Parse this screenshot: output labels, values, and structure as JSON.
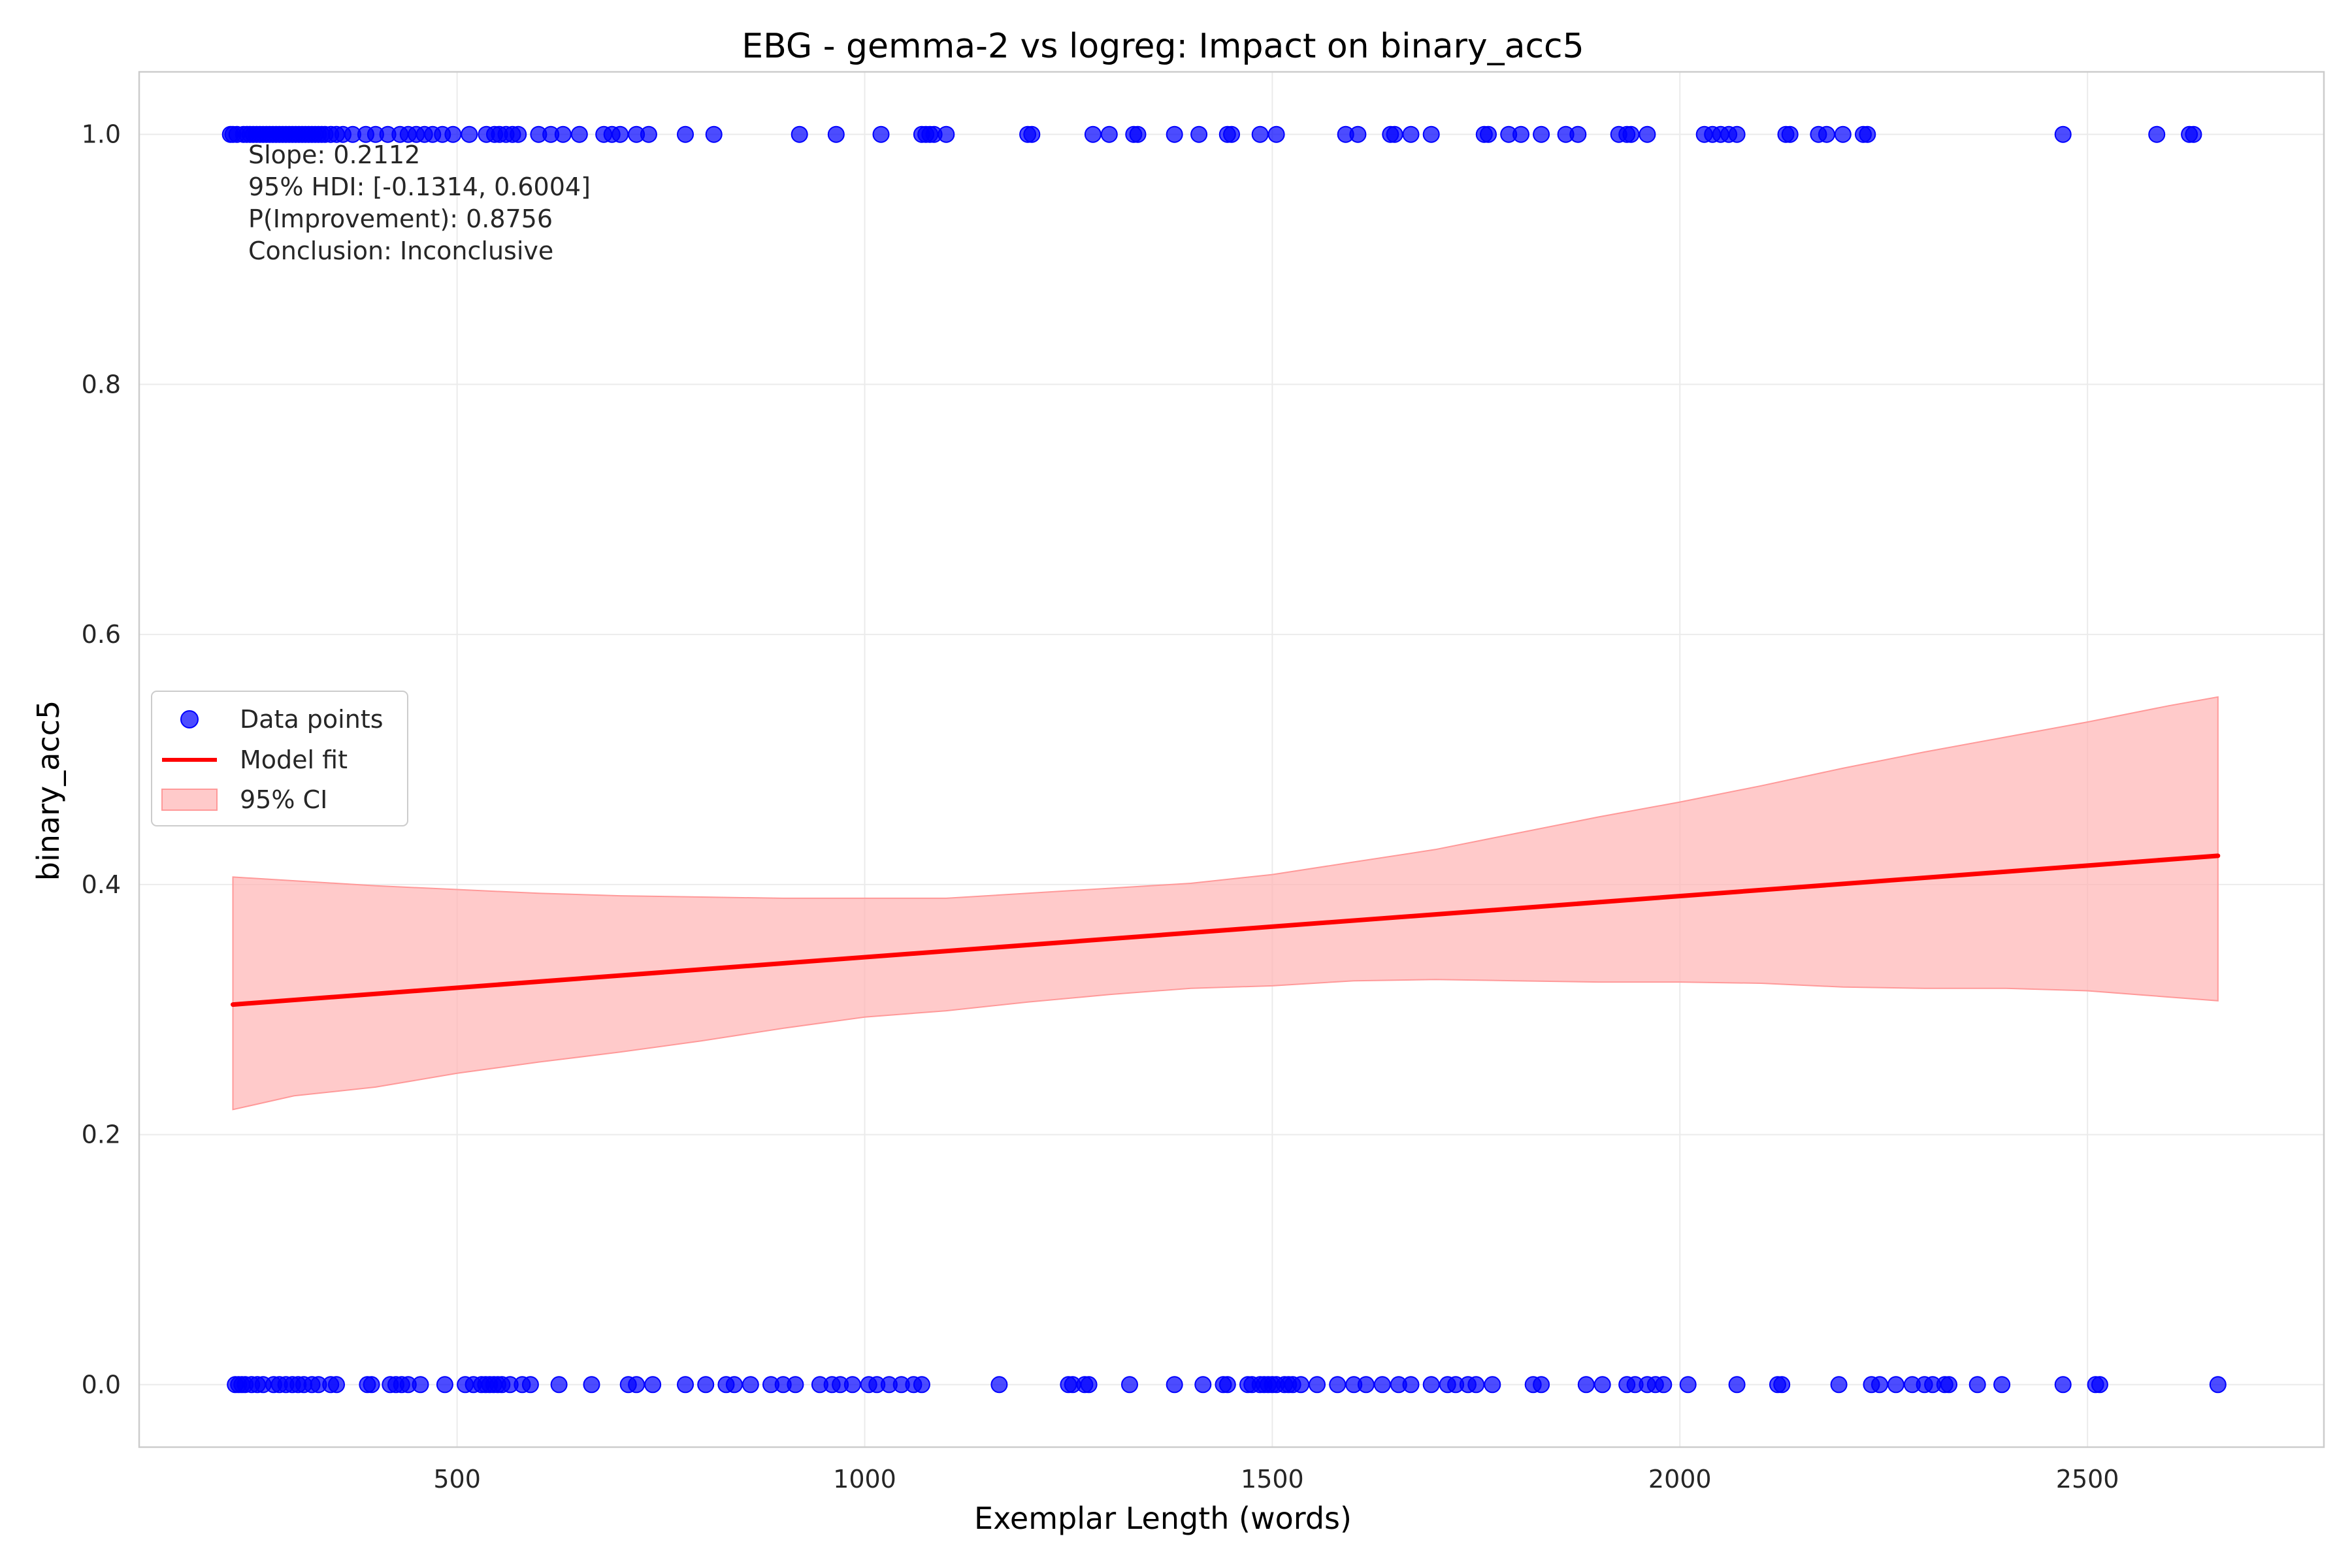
{
  "chart_data": {
    "type": "scatter",
    "title": "EBG - gemma-2 vs logreg: Impact on binary_acc5",
    "xlabel": "Exemplar Length (words)",
    "ylabel": "binary_acc5",
    "xlim": [
      110,
      2790
    ],
    "ylim": [
      -0.05,
      1.05
    ],
    "xticks": [
      500,
      1000,
      1500,
      2000,
      2500
    ],
    "yticks": [
      0.0,
      0.2,
      0.4,
      0.6,
      0.8,
      1.0
    ],
    "xtick_labels": [
      "500",
      "1000",
      "1500",
      "2000",
      "2500"
    ],
    "ytick_labels": [
      "0.0",
      "0.2",
      "0.4",
      "0.6",
      "0.8",
      "1.0"
    ],
    "grid": true,
    "legend_position": "center-left",
    "legend": [
      {
        "label": "Data points",
        "kind": "marker",
        "color": "#0000ff"
      },
      {
        "label": "Model fit",
        "kind": "line",
        "color": "#ff0000"
      },
      {
        "label": "95% CI",
        "kind": "band",
        "color": "#ffb3b3"
      }
    ],
    "stats_text": [
      "Slope: 0.2112",
      "95% HDI: [-0.1314, 0.6004]",
      "P(Improvement): 0.8756",
      "Conclusion: Inconclusive"
    ],
    "series": [
      {
        "name": "Data points",
        "kind": "scatter",
        "color": "#0000ff",
        "points_y1_x": [
          222,
          225,
          230,
          238,
          242,
          246,
          250,
          254,
          258,
          262,
          266,
          270,
          274,
          278,
          282,
          286,
          290,
          294,
          298,
          302,
          306,
          310,
          314,
          318,
          322,
          326,
          330,
          334,
          338,
          345,
          352,
          360,
          372,
          388,
          400,
          415,
          430,
          440,
          450,
          460,
          470,
          482,
          495,
          515,
          536,
          546,
          552,
          560,
          568,
          575,
          600,
          615,
          630,
          650,
          680,
          690,
          700,
          720,
          735,
          780,
          815,
          920,
          965,
          1020,
          1070,
          1075,
          1080,
          1085,
          1100,
          1200,
          1205,
          1280,
          1300,
          1330,
          1335,
          1380,
          1410,
          1445,
          1450,
          1485,
          1505,
          1590,
          1605,
          1645,
          1650,
          1670,
          1695,
          1760,
          1765,
          1790,
          1805,
          1830,
          1860,
          1875,
          1925,
          1935,
          1940,
          1960,
          2030,
          2040,
          2050,
          2060,
          2070,
          2130,
          2135,
          2170,
          2180,
          2200,
          2225,
          2230,
          2470,
          2585,
          2625,
          2630
        ],
        "points_y0_x": [
          228,
          232,
          236,
          240,
          248,
          255,
          262,
          275,
          282,
          290,
          298,
          305,
          312,
          322,
          330,
          345,
          352,
          390,
          395,
          418,
          425,
          432,
          440,
          455,
          485,
          510,
          520,
          530,
          535,
          540,
          545,
          550,
          555,
          565,
          580,
          590,
          625,
          665,
          710,
          720,
          740,
          780,
          805,
          830,
          840,
          860,
          885,
          900,
          915,
          945,
          960,
          970,
          985,
          1005,
          1015,
          1030,
          1045,
          1060,
          1070,
          1165,
          1250,
          1255,
          1270,
          1275,
          1325,
          1380,
          1415,
          1440,
          1445,
          1470,
          1475,
          1485,
          1490,
          1495,
          1500,
          1505,
          1515,
          1520,
          1525,
          1535,
          1555,
          1580,
          1600,
          1615,
          1635,
          1655,
          1670,
          1695,
          1715,
          1725,
          1740,
          1750,
          1770,
          1820,
          1830,
          1885,
          1905,
          1935,
          1945,
          1960,
          1970,
          1980,
          2010,
          2070,
          2120,
          2125,
          2195,
          2235,
          2245,
          2265,
          2285,
          2300,
          2310,
          2325,
          2330,
          2365,
          2395,
          2470,
          2510,
          2515,
          2660
        ]
      },
      {
        "name": "Model fit",
        "kind": "line",
        "color": "#ff0000",
        "x": [
          225,
          2660
        ],
        "y": [
          0.304,
          0.423
        ]
      },
      {
        "name": "95% CI",
        "kind": "band",
        "color": "#ffb3b3",
        "x": [
          225,
          300,
          400,
          500,
          600,
          700,
          800,
          900,
          1000,
          1100,
          1200,
          1300,
          1400,
          1500,
          1600,
          1700,
          1800,
          1900,
          2000,
          2100,
          2200,
          2300,
          2400,
          2500,
          2600,
          2660
        ],
        "upper": [
          0.406,
          0.403,
          0.399,
          0.396,
          0.393,
          0.391,
          0.39,
          0.389,
          0.389,
          0.389,
          0.393,
          0.397,
          0.401,
          0.408,
          0.418,
          0.428,
          0.441,
          0.454,
          0.466,
          0.479,
          0.493,
          0.506,
          0.518,
          0.53,
          0.543,
          0.55
        ],
        "lower": [
          0.22,
          0.231,
          0.238,
          0.249,
          0.258,
          0.266,
          0.275,
          0.285,
          0.294,
          0.299,
          0.306,
          0.312,
          0.317,
          0.319,
          0.323,
          0.324,
          0.323,
          0.322,
          0.322,
          0.321,
          0.318,
          0.317,
          0.317,
          0.315,
          0.31,
          0.307
        ]
      }
    ]
  }
}
